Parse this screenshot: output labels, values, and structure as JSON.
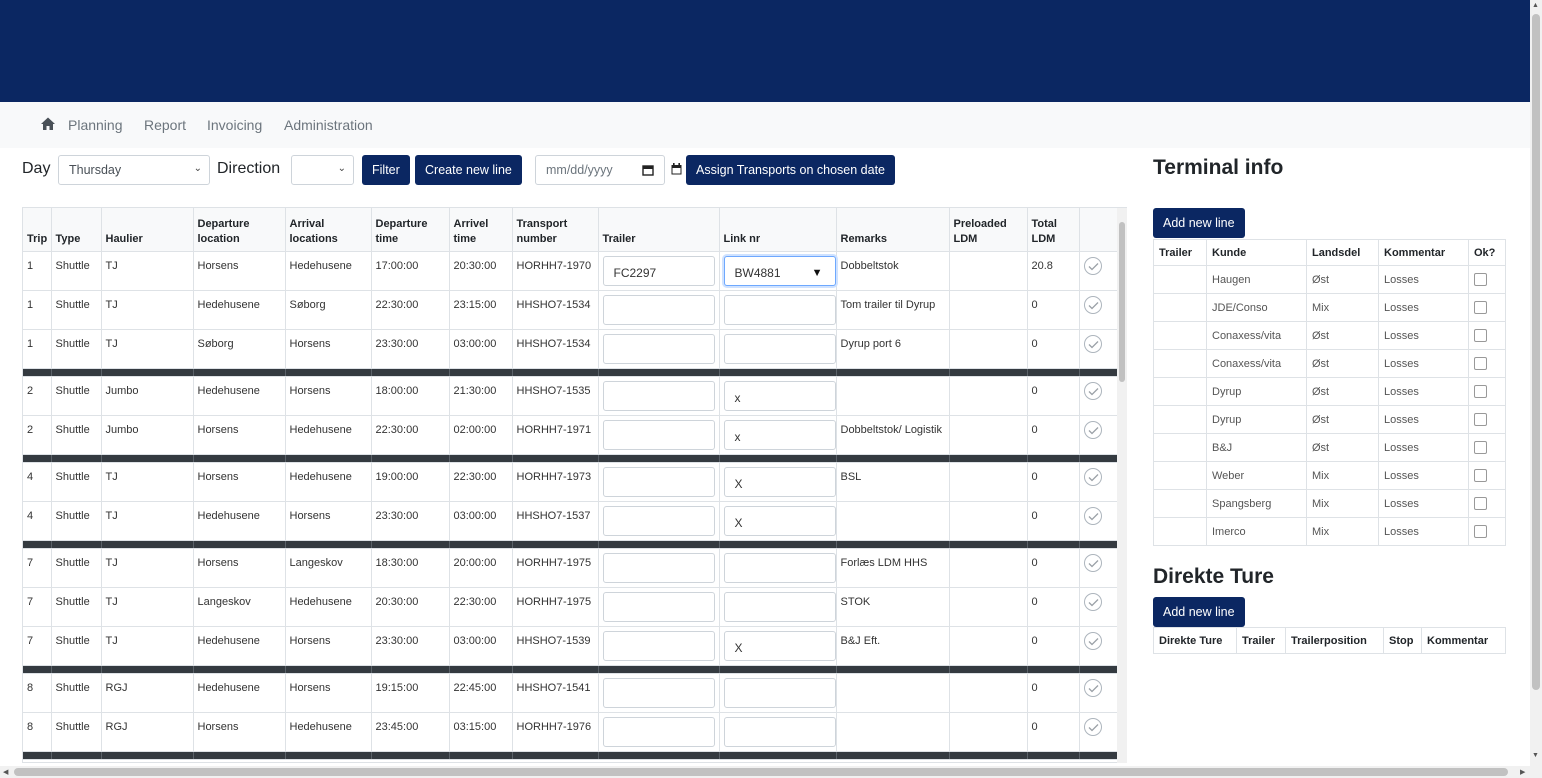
{
  "nav": {
    "items": [
      "Planning",
      "Report",
      "Invoicing",
      "Administration"
    ]
  },
  "toolbar": {
    "day_label": "Day",
    "day_value": "Thursday",
    "direction_label": "Direction",
    "direction_value": "",
    "filter_label": "Filter",
    "create_label": "Create new line",
    "date_placeholder": "mm/dd/yyyy",
    "assign_label": "Assign Transports on chosen date"
  },
  "main_table": {
    "headers": [
      "Trip",
      "Type",
      "Haulier",
      "Departure location",
      "Arrival locations",
      "Departure time",
      "Arrivel time",
      "Transport number",
      "Trailer",
      "Link nr",
      "Remarks",
      "Preloaded LDM",
      "Total LDM"
    ],
    "rows": [
      {
        "trip": "1",
        "type": "Shuttle",
        "haulier": "TJ",
        "dep": "Horsens",
        "arr": "Hedehusene",
        "dtime": "17:00:00",
        "atime": "20:30:00",
        "tnum": "HORHH7-1970",
        "trailer": "FC2297",
        "link": "BW4881",
        "remarks": "Dobbeltstok",
        "preloaded": "",
        "total": "20.8"
      },
      {
        "trip": "1",
        "type": "Shuttle",
        "haulier": "TJ",
        "dep": "Hedehusene",
        "arr": "Søborg",
        "dtime": "22:30:00",
        "atime": "23:15:00",
        "tnum": "HHSHO7-1534",
        "trailer": "",
        "link": "",
        "remarks": "Tom trailer til Dyrup",
        "preloaded": "",
        "total": "0"
      },
      {
        "trip": "1",
        "type": "Shuttle",
        "haulier": "TJ",
        "dep": "Søborg",
        "arr": "Horsens",
        "dtime": "23:30:00",
        "atime": "03:00:00",
        "tnum": "HHSHO7-1534",
        "trailer": "",
        "link": "",
        "remarks": "Dyrup port 6",
        "preloaded": "",
        "total": "0",
        "sep_after": true
      },
      {
        "trip": "2",
        "type": "Shuttle",
        "haulier": "Jumbo",
        "dep": "Hedehusene",
        "arr": "Horsens",
        "dtime": "18:00:00",
        "atime": "21:30:00",
        "tnum": "HHSHO7-1535",
        "trailer": "",
        "link": "x",
        "remarks": "",
        "preloaded": "",
        "total": "0"
      },
      {
        "trip": "2",
        "type": "Shuttle",
        "haulier": "Jumbo",
        "dep": "Horsens",
        "arr": "Hedehusene",
        "dtime": "22:30:00",
        "atime": "02:00:00",
        "tnum": "HORHH7-1971",
        "trailer": "",
        "link": "x",
        "remarks": "Dobbeltstok/ Logistik",
        "preloaded": "",
        "total": "0",
        "sep_after": true
      },
      {
        "trip": "4",
        "type": "Shuttle",
        "haulier": "TJ",
        "dep": "Horsens",
        "arr": "Hedehusene",
        "dtime": "19:00:00",
        "atime": "22:30:00",
        "tnum": "HORHH7-1973",
        "trailer": "",
        "link": "X",
        "remarks": "BSL",
        "preloaded": "",
        "total": "0"
      },
      {
        "trip": "4",
        "type": "Shuttle",
        "haulier": "TJ",
        "dep": "Hedehusene",
        "arr": "Horsens",
        "dtime": "23:30:00",
        "atime": "03:00:00",
        "tnum": "HHSHO7-1537",
        "trailer": "",
        "link": "X",
        "remarks": "",
        "preloaded": "",
        "total": "0",
        "sep_after": true
      },
      {
        "trip": "7",
        "type": "Shuttle",
        "haulier": "TJ",
        "dep": "Horsens",
        "arr": "Langeskov",
        "dtime": "18:30:00",
        "atime": "20:00:00",
        "tnum": "HORHH7-1975",
        "trailer": "",
        "link": "",
        "remarks": "Forlæs LDM HHS",
        "preloaded": "",
        "total": "0"
      },
      {
        "trip": "7",
        "type": "Shuttle",
        "haulier": "TJ",
        "dep": "Langeskov",
        "arr": "Hedehusene",
        "dtime": "20:30:00",
        "atime": "22:30:00",
        "tnum": "HORHH7-1975",
        "trailer": "",
        "link": "",
        "remarks": "STOK",
        "preloaded": "",
        "total": "0"
      },
      {
        "trip": "7",
        "type": "Shuttle",
        "haulier": "TJ",
        "dep": "Hedehusene",
        "arr": "Horsens",
        "dtime": "23:30:00",
        "atime": "03:00:00",
        "tnum": "HHSHO7-1539",
        "trailer": "",
        "link": "X",
        "remarks": "B&J Eft.",
        "preloaded": "",
        "total": "0",
        "sep_after": true
      },
      {
        "trip": "8",
        "type": "Shuttle",
        "haulier": "RGJ",
        "dep": "Hedehusene",
        "arr": "Horsens",
        "dtime": "19:15:00",
        "atime": "22:45:00",
        "tnum": "HHSHO7-1541",
        "trailer": "",
        "link": "",
        "remarks": "",
        "preloaded": "",
        "total": "0"
      },
      {
        "trip": "8",
        "type": "Shuttle",
        "haulier": "RGJ",
        "dep": "Horsens",
        "arr": "Hedehusene",
        "dtime": "23:45:00",
        "atime": "03:15:00",
        "tnum": "HORHH7-1976",
        "trailer": "",
        "link": "",
        "remarks": "",
        "preloaded": "",
        "total": "0",
        "sep_after": true
      }
    ]
  },
  "terminal": {
    "title": "Terminal info",
    "add_label": "Add new line",
    "headers": [
      "Trailer",
      "Kunde",
      "Landsdel",
      "Kommentar",
      "Ok?"
    ],
    "rows": [
      {
        "trailer": "",
        "kunde": "Haugen",
        "landsdel": "Øst",
        "kommentar": "Losses"
      },
      {
        "trailer": "",
        "kunde": "JDE/Conso",
        "landsdel": "Mix",
        "kommentar": "Losses"
      },
      {
        "trailer": "",
        "kunde": "Conaxess/vita",
        "landsdel": "Øst",
        "kommentar": "Losses"
      },
      {
        "trailer": "",
        "kunde": "Conaxess/vita",
        "landsdel": "Øst",
        "kommentar": "Losses"
      },
      {
        "trailer": "",
        "kunde": "Dyrup",
        "landsdel": "Øst",
        "kommentar": "Losses"
      },
      {
        "trailer": "",
        "kunde": "Dyrup",
        "landsdel": "Øst",
        "kommentar": "Losses"
      },
      {
        "trailer": "",
        "kunde": "B&J",
        "landsdel": "Øst",
        "kommentar": "Losses"
      },
      {
        "trailer": "",
        "kunde": "Weber",
        "landsdel": "Mix",
        "kommentar": "Losses"
      },
      {
        "trailer": "",
        "kunde": "Spangsberg",
        "landsdel": "Mix",
        "kommentar": "Losses"
      },
      {
        "trailer": "",
        "kunde": "Imerco",
        "landsdel": "Mix",
        "kommentar": "Losses"
      }
    ]
  },
  "direkte": {
    "title": "Direkte Ture",
    "add_label": "Add new line",
    "headers": [
      "Direkte Ture",
      "Trailer",
      "Trailerposition",
      "Stop",
      "Kommentar"
    ]
  },
  "colors": {
    "brand": "#0b2762",
    "separator": "#343a40"
  }
}
